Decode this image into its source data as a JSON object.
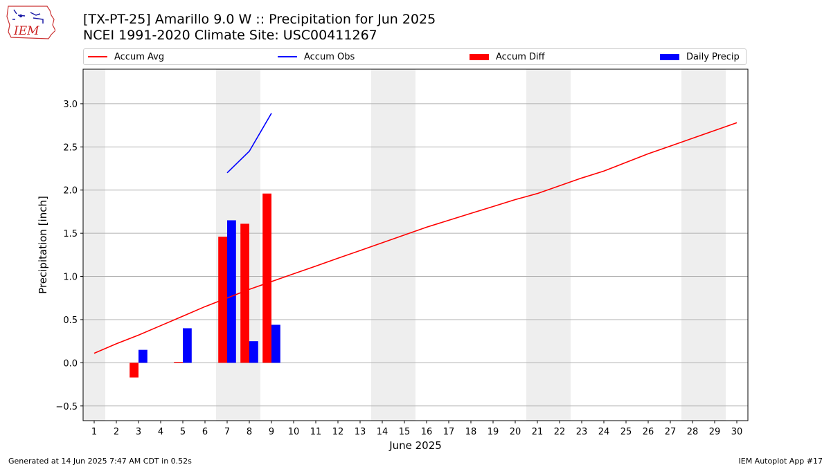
{
  "header": {
    "logo_text": "IEM",
    "title_line1": "[TX-PT-25] Amarillo 9.0 W :: Precipitation for Jun 2025",
    "title_line2": "NCEI 1991-2020 Climate Site: USC00411267"
  },
  "legend": {
    "accum_avg": "Accum Avg",
    "accum_obs": "Accum Obs",
    "accum_diff": "Accum Diff",
    "daily_precip": "Daily Precip"
  },
  "footer": {
    "generated": "Generated at 14 Jun 2025 7:47 AM CDT in 0.52s",
    "app": "IEM Autoplot App #17"
  },
  "colors": {
    "accum_avg": "#ff0000",
    "accum_obs": "#0000ff",
    "accum_diff": "#ff0000",
    "daily_precip": "#0000ff",
    "weekend_band": "#eeeeee",
    "grid": "#b0b0b0"
  },
  "chart_data": {
    "type": "bar",
    "xlabel": "June 2025",
    "ylabel": "Precipitation [inch]",
    "xlim": [
      0.5,
      30.5
    ],
    "ylim": [
      -0.67,
      3.4
    ],
    "x_ticks": [
      1,
      2,
      3,
      4,
      5,
      6,
      7,
      8,
      9,
      10,
      11,
      12,
      13,
      14,
      15,
      16,
      17,
      18,
      19,
      20,
      21,
      22,
      23,
      24,
      25,
      26,
      27,
      28,
      29,
      30
    ],
    "y_ticks": [
      -0.5,
      0.0,
      0.5,
      1.0,
      1.5,
      2.0,
      2.5,
      3.0
    ],
    "y_tick_labels": [
      "−0.5",
      "0.0",
      "0.5",
      "1.0",
      "1.5",
      "2.0",
      "2.5",
      "3.0"
    ],
    "grid": "horizontal",
    "weekend_days": [
      1,
      7,
      8,
      14,
      15,
      21,
      22,
      28,
      29
    ],
    "series": [
      {
        "name": "Accum Avg",
        "type": "line",
        "x": [
          1,
          2,
          3,
          4,
          5,
          6,
          7,
          8,
          9,
          10,
          11,
          12,
          13,
          14,
          15,
          16,
          17,
          18,
          19,
          20,
          21,
          22,
          23,
          24,
          25,
          26,
          27,
          28,
          29,
          30
        ],
        "values": [
          0.11,
          0.22,
          0.32,
          0.43,
          0.54,
          0.65,
          0.75,
          0.85,
          0.94,
          1.03,
          1.12,
          1.21,
          1.3,
          1.39,
          1.48,
          1.57,
          1.65,
          1.73,
          1.81,
          1.89,
          1.96,
          2.05,
          2.14,
          2.22,
          2.32,
          2.42,
          2.51,
          2.6,
          2.69,
          2.78
        ]
      },
      {
        "name": "Accum Obs",
        "type": "line",
        "x": [
          7,
          8,
          9
        ],
        "values": [
          2.2,
          2.45,
          2.89
        ]
      },
      {
        "name": "Accum Diff",
        "type": "bar",
        "x": [
          3,
          5,
          7,
          8,
          9
        ],
        "values": [
          -0.17,
          0.01,
          1.46,
          1.61,
          1.96
        ]
      },
      {
        "name": "Daily Precip",
        "type": "bar",
        "x": [
          3,
          5,
          7,
          8,
          9
        ],
        "values": [
          0.15,
          0.4,
          1.65,
          0.25,
          0.44
        ]
      }
    ]
  }
}
